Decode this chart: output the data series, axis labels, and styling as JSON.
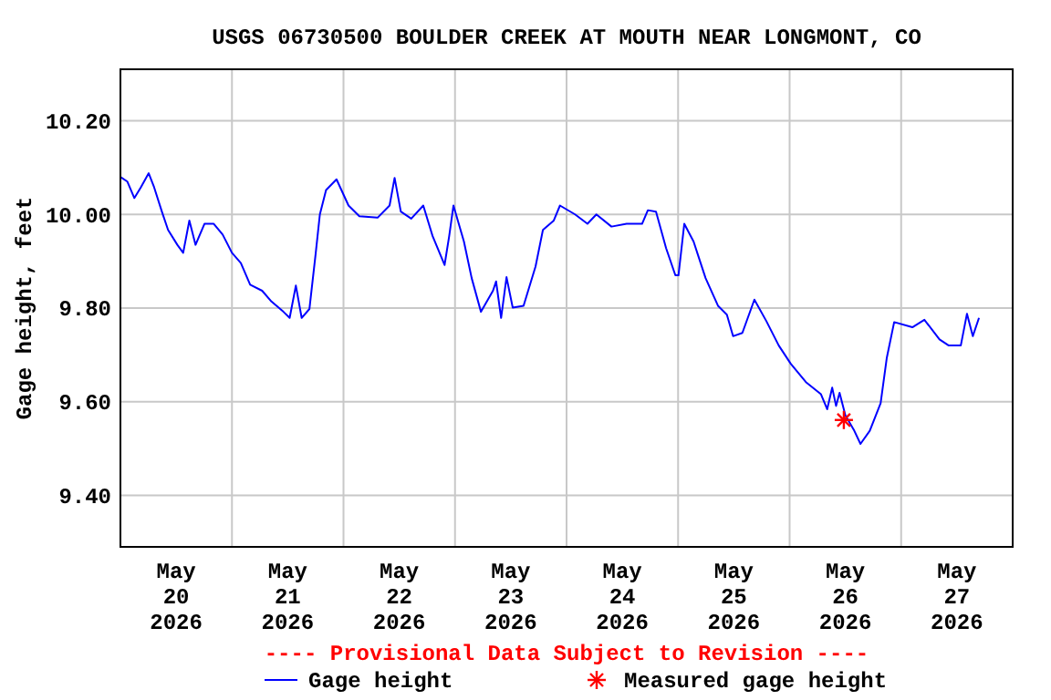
{
  "chart_data": {
    "type": "line",
    "title": "USGS 06730500 BOULDER CREEK AT MOUTH NEAR LONGMONT, CO",
    "ylabel": "Gage height, feet",
    "annotations": [
      "---- Provisional Data Subject to Revision ----"
    ],
    "xlim": [
      "2026-05-20T00:00",
      "2026-05-28T00:00"
    ],
    "xticks": [
      {
        "value": "2026-05-20T12:00",
        "label": "May\n20\n2026"
      },
      {
        "value": "2026-05-21T00:00",
        "label": null
      },
      {
        "value": "2026-05-21T12:00",
        "label": "May\n21\n2026"
      },
      {
        "value": "2026-05-22T00:00",
        "label": null
      },
      {
        "value": "2026-05-22T12:00",
        "label": "May\n22\n2026"
      },
      {
        "value": "2026-05-23T00:00",
        "label": null
      },
      {
        "value": "2026-05-23T12:00",
        "label": "May\n23\n2026"
      },
      {
        "value": "2026-05-24T00:00",
        "label": null
      },
      {
        "value": "2026-05-24T12:00",
        "label": "May\n24\n2026"
      },
      {
        "value": "2026-05-25T00:00",
        "label": null
      },
      {
        "value": "2026-05-25T12:00",
        "label": "May\n25\n2026"
      },
      {
        "value": "2026-05-26T00:00",
        "label": null
      },
      {
        "value": "2026-05-26T12:00",
        "label": "May\n26\n2026"
      },
      {
        "value": "2026-05-27T00:00",
        "label": null
      },
      {
        "value": "2026-05-27T12:00",
        "label": "May\n27\n2026"
      }
    ],
    "ylim": [
      9.29,
      10.31
    ],
    "yticks": [
      {
        "value": 9.4,
        "label": "9.40"
      },
      {
        "value": 9.6,
        "label": "9.60"
      },
      {
        "value": 9.8,
        "label": "9.80"
      },
      {
        "value": 10.0,
        "label": "10.00"
      },
      {
        "value": 10.2,
        "label": "10.20"
      }
    ],
    "grid": true,
    "legend": "bottom",
    "series": [
      {
        "name": "Gage height",
        "color": "#0000ff",
        "line_style": "solid",
        "marker": "none",
        "x": [
          "2026-05-20T00:00",
          "2026-05-20T01:30",
          "2026-05-20T03:00",
          "2026-05-20T04:24",
          "2026-05-20T06:05",
          "2026-05-20T07:15",
          "2026-05-20T08:55",
          "2026-05-20T10:15",
          "2026-05-20T12:15",
          "2026-05-20T13:30",
          "2026-05-20T14:50",
          "2026-05-20T16:10",
          "2026-05-20T18:05",
          "2026-05-20T20:05",
          "2026-05-20T22:00",
          "2026-05-21T00:00",
          "2026-05-21T01:55",
          "2026-05-21T03:55",
          "2026-05-21T06:30",
          "2026-05-21T08:30",
          "2026-05-21T11:05",
          "2026-05-21T12:25",
          "2026-05-21T13:45",
          "2026-05-21T15:00",
          "2026-05-21T16:40",
          "2026-05-21T18:00",
          "2026-05-21T18:55",
          "2026-05-21T20:15",
          "2026-05-21T22:30",
          "2026-05-22T01:05",
          "2026-05-22T03:25",
          "2026-05-22T07:20",
          "2026-05-22T09:55",
          "2026-05-22T11:00",
          "2026-05-22T12:20",
          "2026-05-22T14:35",
          "2026-05-22T17:10",
          "2026-05-22T19:10",
          "2026-05-22T21:45",
          "2026-05-22T22:45",
          "2026-05-22T23:40",
          "2026-05-23T01:55",
          "2026-05-23T03:35",
          "2026-05-23T05:35",
          "2026-05-23T08:10",
          "2026-05-23T08:50",
          "2026-05-23T09:55",
          "2026-05-23T11:05",
          "2026-05-23T12:25",
          "2026-05-23T14:45",
          "2026-05-23T17:20",
          "2026-05-23T18:55",
          "2026-05-23T21:15",
          "2026-05-23T22:35",
          "2026-05-24T01:50",
          "2026-05-24T04:30",
          "2026-05-24T06:25",
          "2026-05-24T09:40",
          "2026-05-24T12:55",
          "2026-05-24T16:15",
          "2026-05-24T17:30",
          "2026-05-24T19:15",
          "2026-05-24T21:25",
          "2026-05-24T23:25",
          "2026-05-25T00:05",
          "2026-05-25T01:20",
          "2026-05-25T03:20",
          "2026-05-25T05:55",
          "2026-05-25T08:35",
          "2026-05-25T10:30",
          "2026-05-25T11:50",
          "2026-05-25T13:50",
          "2026-05-25T16:25",
          "2026-05-25T19:00",
          "2026-05-25T21:40",
          "2026-05-26T00:15",
          "2026-05-26T03:30",
          "2026-05-26T06:45",
          "2026-05-26T08:05",
          "2026-05-26T09:10",
          "2026-05-26T10:00",
          "2026-05-26T10:45",
          "2026-05-26T12:00",
          "2026-05-26T13:55",
          "2026-05-26T15:15",
          "2026-05-26T17:15",
          "2026-05-26T19:35",
          "2026-05-26T20:55",
          "2026-05-26T22:30",
          "2026-05-27T02:25",
          "2026-05-27T05:00",
          "2026-05-27T08:15",
          "2026-05-27T10:15",
          "2026-05-27T12:50",
          "2026-05-27T14:10",
          "2026-05-27T15:25",
          "2026-05-27T16:45"
        ],
        "values": [
          10.08,
          10.07,
          10.035,
          10.058,
          10.088,
          10.058,
          10.006,
          9.967,
          9.935,
          9.918,
          9.987,
          9.935,
          9.98,
          9.98,
          9.957,
          9.918,
          9.896,
          9.85,
          9.837,
          9.814,
          9.792,
          9.779,
          9.848,
          9.779,
          9.798,
          9.915,
          10.0,
          10.052,
          10.075,
          10.019,
          9.996,
          9.993,
          10.019,
          10.078,
          10.006,
          9.991,
          10.019,
          9.954,
          9.892,
          9.954,
          10.019,
          9.942,
          9.864,
          9.792,
          9.837,
          9.857,
          9.779,
          9.866,
          9.801,
          9.805,
          9.889,
          9.967,
          9.987,
          10.019,
          10.0,
          9.98,
          10.0,
          9.974,
          9.98,
          9.98,
          10.009,
          10.006,
          9.928,
          9.87,
          9.87,
          9.98,
          9.942,
          9.864,
          9.805,
          9.786,
          9.74,
          9.747,
          9.818,
          9.772,
          9.72,
          9.681,
          9.642,
          9.616,
          9.584,
          9.63,
          9.591,
          9.619,
          9.571,
          9.538,
          9.51,
          9.538,
          9.597,
          9.694,
          9.77,
          9.759,
          9.775,
          9.733,
          9.72,
          9.72,
          9.788,
          9.74,
          9.779
        ]
      },
      {
        "name": "Measured gage height",
        "color": "#ff0000",
        "type": "scatter",
        "marker": "cross",
        "x": [
          "2026-05-26T11:40"
        ],
        "values": [
          9.561
        ]
      }
    ]
  }
}
